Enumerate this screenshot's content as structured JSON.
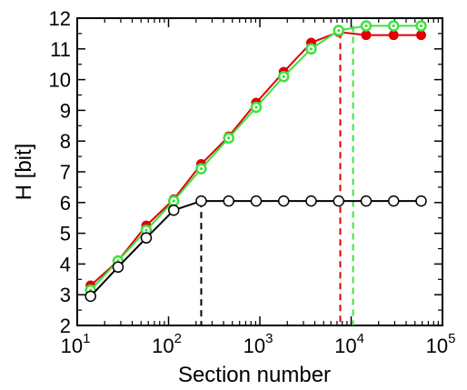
{
  "chart_data": {
    "type": "line",
    "xlabel": "Section number",
    "ylabel": "H   [bit]",
    "x_scale": "log",
    "xlim": [
      10,
      100000
    ],
    "ylim": [
      2,
      12
    ],
    "x_ticks": [
      {
        "base": "10",
        "exp": "1",
        "value": 10
      },
      {
        "base": "10",
        "exp": "2",
        "value": 100
      },
      {
        "base": "10",
        "exp": "3",
        "value": 1000
      },
      {
        "base": "10",
        "exp": "4",
        "value": 10000
      },
      {
        "base": "10",
        "exp": "5",
        "value": 100000
      }
    ],
    "y_ticks": [
      "2",
      "3",
      "4",
      "5",
      "6",
      "7",
      "8",
      "9",
      "10",
      "11",
      "12"
    ],
    "grid": false,
    "series": [
      {
        "color": "#e00000",
        "marker": "filled-circle",
        "x": [
          14,
          28,
          57,
          114,
          228,
          456,
          912,
          1824,
          3648,
          7296,
          14592,
          29184,
          58368
        ],
        "y": [
          3.3,
          4.1,
          5.25,
          6.1,
          7.25,
          8.15,
          9.25,
          10.25,
          11.2,
          11.55,
          11.45,
          11.45,
          11.45
        ]
      },
      {
        "color": "#40e040",
        "marker": "ring",
        "x": [
          14,
          28,
          57,
          114,
          228,
          456,
          912,
          1824,
          3648,
          7296,
          14592,
          29184,
          58368
        ],
        "y": [
          3.15,
          4.1,
          5.1,
          6.05,
          7.1,
          8.1,
          9.1,
          10.1,
          11.0,
          11.6,
          11.75,
          11.75,
          11.75
        ]
      },
      {
        "color": "#000000",
        "marker": "open-circle",
        "x": [
          14,
          28,
          57,
          114,
          228,
          456,
          912,
          1824,
          3648,
          7296,
          14592,
          29184,
          58368
        ],
        "y": [
          2.95,
          3.9,
          4.85,
          5.75,
          6.05,
          6.05,
          6.05,
          6.05,
          6.05,
          6.05,
          6.05,
          6.05,
          6.05
        ]
      }
    ],
    "vertical_markers": [
      {
        "x": 228,
        "y_top": 6.05,
        "color": "#000000"
      },
      {
        "x": 7600,
        "y_top": 11.55,
        "color": "#e00000"
      },
      {
        "x": 10500,
        "y_top": 11.75,
        "color": "#40e040"
      }
    ]
  }
}
